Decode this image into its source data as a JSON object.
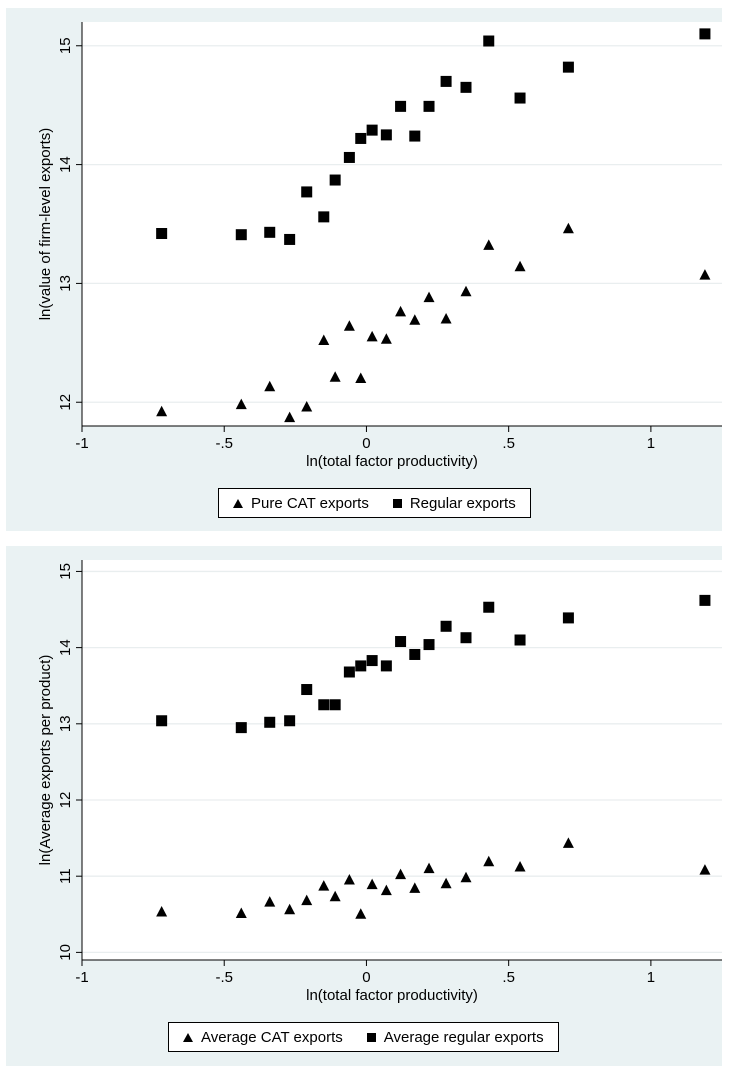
{
  "chart_data": [
    {
      "type": "scatter",
      "xlabel": "ln(total factor productivity)",
      "ylabel": "ln(value of firm-level exports)",
      "xlim": [
        -1,
        1.25
      ],
      "ylim": [
        11.8,
        15.2
      ],
      "xticks": [
        -1,
        -0.5,
        0,
        0.5,
        1
      ],
      "xtick_labels": [
        "-1",
        "-.5",
        "0",
        ".5",
        "1"
      ],
      "yticks": [
        12,
        13,
        14,
        15
      ],
      "ytick_labels": [
        "12",
        "13",
        "14",
        "15"
      ],
      "grid": true,
      "legend_position": "bottom",
      "series": [
        {
          "name": "Pure CAT exports",
          "marker": "triangle",
          "color": "#000000",
          "x": [
            -0.72,
            -0.44,
            -0.34,
            -0.27,
            -0.21,
            -0.15,
            -0.11,
            -0.06,
            -0.02,
            0.02,
            0.07,
            0.12,
            0.17,
            0.22,
            0.28,
            0.35,
            0.43,
            0.54,
            0.71,
            1.19
          ],
          "y": [
            11.92,
            11.98,
            12.13,
            11.87,
            11.96,
            12.52,
            12.21,
            12.64,
            12.2,
            12.55,
            12.53,
            12.76,
            12.69,
            12.88,
            12.7,
            12.93,
            13.32,
            13.14,
            13.46,
            13.07
          ]
        },
        {
          "name": "Regular exports",
          "marker": "square",
          "color": "#000000",
          "x": [
            -0.72,
            -0.44,
            -0.34,
            -0.27,
            -0.21,
            -0.15,
            -0.11,
            -0.06,
            -0.02,
            0.02,
            0.07,
            0.12,
            0.17,
            0.22,
            0.28,
            0.35,
            0.43,
            0.54,
            0.71,
            1.19
          ],
          "y": [
            13.42,
            13.41,
            13.43,
            13.37,
            13.77,
            13.56,
            13.87,
            14.06,
            14.22,
            14.29,
            14.25,
            14.49,
            14.24,
            14.49,
            14.7,
            14.65,
            15.04,
            14.56,
            14.82,
            15.1
          ]
        }
      ]
    },
    {
      "type": "scatter",
      "xlabel": "ln(total factor productivity)",
      "ylabel": "ln(Average exports per product)",
      "xlim": [
        -1,
        1.25
      ],
      "ylim": [
        9.9,
        15.15
      ],
      "xticks": [
        -1,
        -0.5,
        0,
        0.5,
        1
      ],
      "xtick_labels": [
        "-1",
        "-.5",
        "0",
        ".5",
        "1"
      ],
      "yticks": [
        10,
        11,
        12,
        13,
        14,
        15
      ],
      "ytick_labels": [
        "10",
        "11",
        "12",
        "13",
        "14",
        "15"
      ],
      "grid": true,
      "legend_position": "bottom",
      "series": [
        {
          "name": "Average CAT exports",
          "marker": "triangle",
          "color": "#000000",
          "x": [
            -0.72,
            -0.44,
            -0.34,
            -0.27,
            -0.21,
            -0.15,
            -0.11,
            -0.06,
            -0.02,
            0.02,
            0.07,
            0.12,
            0.17,
            0.22,
            0.28,
            0.35,
            0.43,
            0.54,
            0.71,
            1.19
          ],
          "y": [
            10.53,
            10.51,
            10.66,
            10.56,
            10.68,
            10.87,
            10.73,
            10.95,
            10.5,
            10.89,
            10.81,
            11.02,
            10.84,
            11.1,
            10.9,
            10.98,
            11.19,
            11.12,
            11.43,
            11.08
          ]
        },
        {
          "name": "Average regular exports",
          "marker": "square",
          "color": "#000000",
          "x": [
            -0.72,
            -0.44,
            -0.34,
            -0.27,
            -0.21,
            -0.15,
            -0.11,
            -0.06,
            -0.02,
            0.02,
            0.07,
            0.12,
            0.17,
            0.22,
            0.28,
            0.35,
            0.43,
            0.54,
            0.71,
            1.19
          ],
          "y": [
            13.04,
            12.95,
            13.02,
            13.04,
            13.45,
            13.25,
            13.25,
            13.68,
            13.76,
            13.83,
            13.76,
            14.08,
            13.91,
            14.04,
            14.28,
            14.13,
            14.53,
            14.1,
            14.39,
            14.62
          ]
        }
      ]
    }
  ]
}
